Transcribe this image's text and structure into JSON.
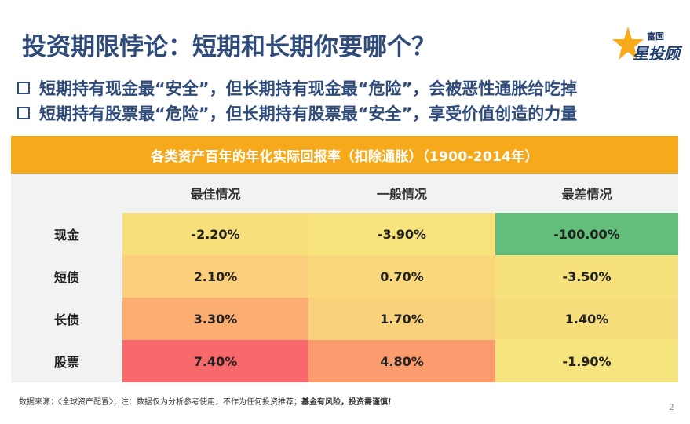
{
  "slide": {
    "title": "投资期限悖论：短期和长期你要哪个？",
    "bullets": [
      "短期持有现金最“安全”，但长期持有现金最“危险”，会被恶性通胀给吃掉",
      "短期持有股票最“危险”，但长期持有股票最“安全”，享受价值创造的力量"
    ],
    "page_number": "2"
  },
  "logo": {
    "small_text": "富国",
    "big_text": "星投顾"
  },
  "table": {
    "title": "各类资产百年的年化实际回报率（扣除通胀）（1900-2014年）",
    "columns": [
      "最佳情况",
      "一般情况",
      "最差情况"
    ],
    "rows": [
      {
        "label": "现金",
        "values": [
          "-2.20%",
          "-3.90%",
          "-100.00%"
        ],
        "colors": [
          "#f7e07c",
          "#f7e27c",
          "#63be7b"
        ]
      },
      {
        "label": "短债",
        "values": [
          "2.10%",
          "0.70%",
          "-3.50%"
        ],
        "colors": [
          "#fbcf7b",
          "#f9d87c",
          "#f6e17c"
        ]
      },
      {
        "label": "长债",
        "values": [
          "3.30%",
          "1.70%",
          "1.40%"
        ],
        "colors": [
          "#fcad71",
          "#fad17b",
          "#f8dd7c"
        ]
      },
      {
        "label": "股票",
        "values": [
          "7.40%",
          "4.80%",
          "-1.90%"
        ],
        "colors": [
          "#f8696b",
          "#fb9c6e",
          "#f6e57e"
        ]
      }
    ]
  },
  "footer": {
    "source_text": "数据来源：《全球资产配置》；注：数据仅为分析参考使用，不作为任何投资推荐；",
    "warning_text": "基金有风险，投资需谨慎！"
  }
}
